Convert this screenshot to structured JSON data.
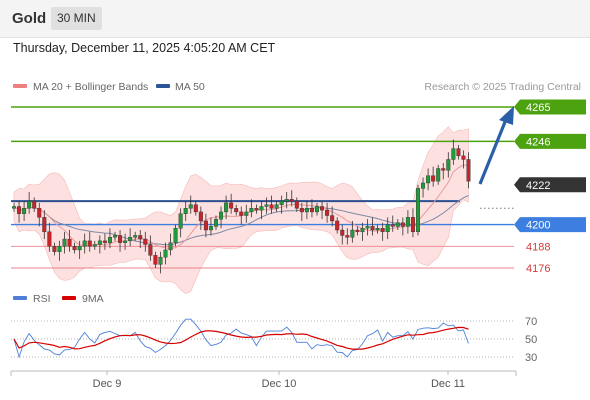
{
  "header": {
    "symbol": "Gold",
    "timeframe": "30 MIN",
    "datetime": "Thursday, December 11, 2025 4:05:20 AM CET"
  },
  "colors": {
    "ma20": "#f08080",
    "ma50": "#2b5597",
    "bands_fill": "#fde0e0",
    "resistance": "#4ca30f",
    "support": "#3d7fe0",
    "current": "#333333",
    "minor_support": "#e8848a",
    "rsi": "#4f7fd9",
    "rsi_ma": "#d60000",
    "arrow": "#2b5fa8",
    "candle_up": "#1f9b3a",
    "candle_down": "#c6262b"
  },
  "legend": {
    "ma20": "MA 20 + Bollinger Bands",
    "ma50": "MA 50",
    "rsi": "RSI",
    "rsi_ma": "9MA"
  },
  "attribution": "Research © 2025 Trading Central",
  "chart_data": [
    {
      "type": "candlestick",
      "title": "",
      "x_ticks": [
        "Dec 9",
        "Dec 10",
        "Dec 11"
      ],
      "levels": [
        {
          "value": 4265,
          "label": "4265",
          "role": "resistance"
        },
        {
          "value": 4246,
          "label": "4246",
          "role": "resistance"
        },
        {
          "value": 4222,
          "label": "4222",
          "role": "current"
        },
        {
          "value": 4200,
          "label": "4200",
          "role": "support"
        },
        {
          "value": 4188,
          "label": "4188",
          "role": "minor_support"
        },
        {
          "value": 4176,
          "label": "4176",
          "role": "minor_support"
        }
      ],
      "pivot": 4213,
      "path_close": [
        4210,
        4206,
        4209,
        4213,
        4209,
        4204,
        4196,
        4188,
        4185,
        4188,
        4192,
        4188,
        4186,
        4188,
        4191,
        4188,
        4189,
        4191,
        4190,
        4193,
        4194,
        4190,
        4191,
        4193,
        4194,
        4192,
        4189,
        4183,
        4178,
        4182,
        4186,
        4190,
        4198,
        4206,
        4209,
        4211,
        4207,
        4202,
        4197,
        4199,
        4203,
        4207,
        4212,
        4209,
        4207,
        4205,
        4207,
        4209,
        4208,
        4210,
        4211,
        4209,
        4211,
        4213,
        4214,
        4213,
        4209,
        4207,
        4209,
        4207,
        4210,
        4208,
        4205,
        4202,
        4197,
        4194,
        4193,
        4197,
        4196,
        4198,
        4199,
        4197,
        4198,
        4196,
        4200,
        4199,
        4201,
        4199,
        4204,
        4196,
        4220,
        4223,
        4227,
        4224,
        4231,
        4230,
        4236,
        4242,
        4238,
        4236,
        4224
      ],
      "ylim": [
        4170,
        4272
      ]
    },
    {
      "type": "line",
      "title": "",
      "series": [
        {
          "name": "RSI"
        },
        {
          "name": "9MA"
        }
      ],
      "y_ticks": [
        70,
        50,
        30
      ],
      "ylim": [
        20,
        80
      ]
    }
  ]
}
